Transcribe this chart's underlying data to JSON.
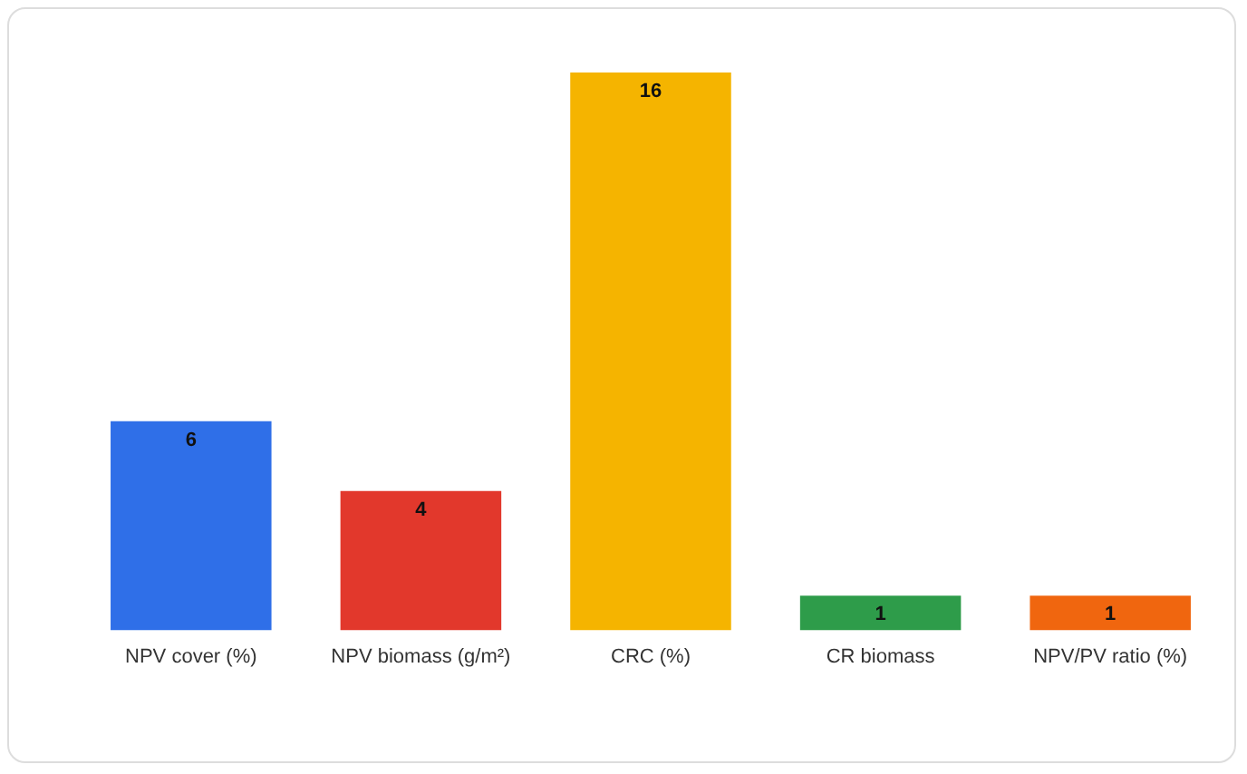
{
  "chart_data": {
    "type": "bar",
    "categories": [
      "NPV cover (%)",
      "NPV biomass (g/m²)",
      "CRC (%)",
      "CR biomass",
      "NPV/PV ratio (%)"
    ],
    "values": [
      6,
      4,
      16,
      1,
      1
    ],
    "colors": [
      "#2f6fe8",
      "#e2382c",
      "#f5b400",
      "#2e9c4a",
      "#f0660f"
    ],
    "data_labels": true,
    "grid": false,
    "legend": false
  }
}
